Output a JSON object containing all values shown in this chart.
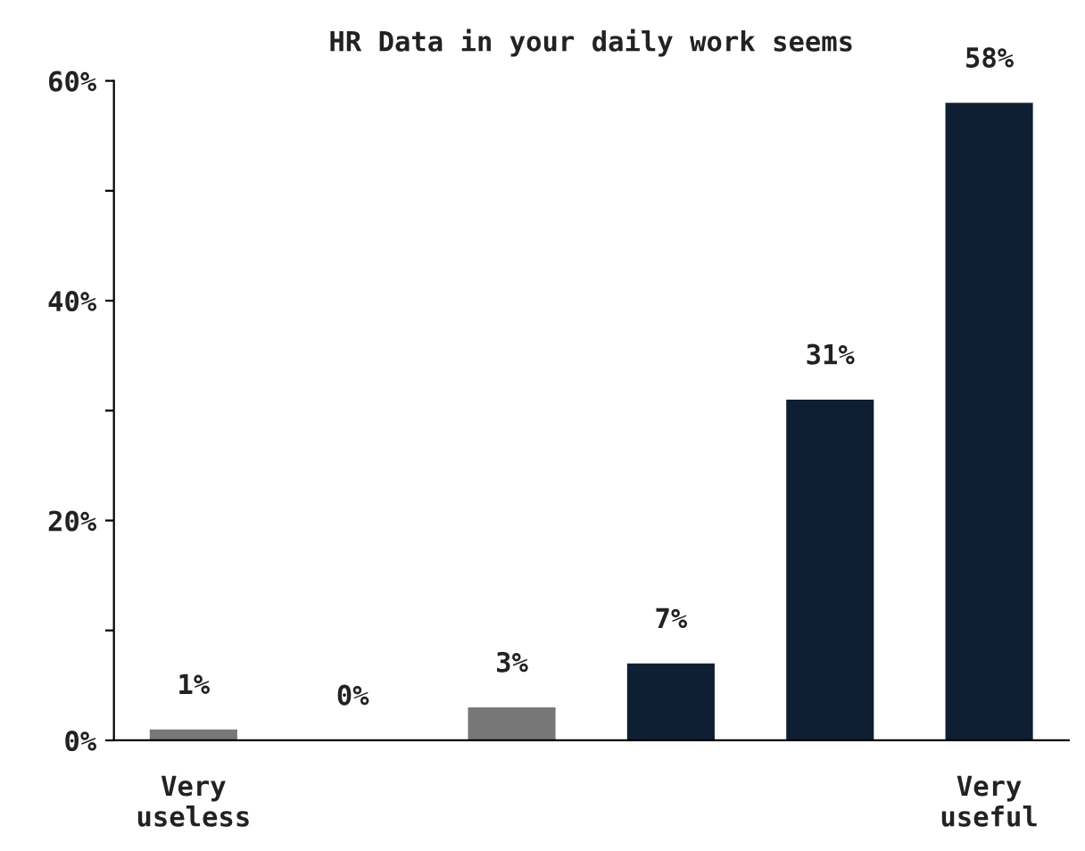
{
  "chart_data": {
    "type": "bar",
    "title": "HR Data in your daily work seems",
    "categories": [
      "Very\nuseless",
      null,
      null,
      null,
      null,
      "Very\nuseful"
    ],
    "values": [
      1,
      0,
      3,
      7,
      31,
      58
    ],
    "colors": [
      "#777777",
      "#777777",
      "#777777",
      "#0f1f33",
      "#0f1f33",
      "#0f1f33"
    ],
    "value_labels": [
      "1%",
      "0%",
      "3%",
      "7%",
      "31%",
      "58%"
    ],
    "ylim": [
      0,
      60
    ],
    "yticks": [
      {
        "value": 0,
        "label": "0%"
      },
      {
        "value": 10,
        "label": null
      },
      {
        "value": 20,
        "label": "20%"
      },
      {
        "value": 30,
        "label": null
      },
      {
        "value": 40,
        "label": "40%"
      },
      {
        "value": 50,
        "label": null
      },
      {
        "value": 60,
        "label": "60%"
      }
    ],
    "grid": false,
    "legend": false
  }
}
